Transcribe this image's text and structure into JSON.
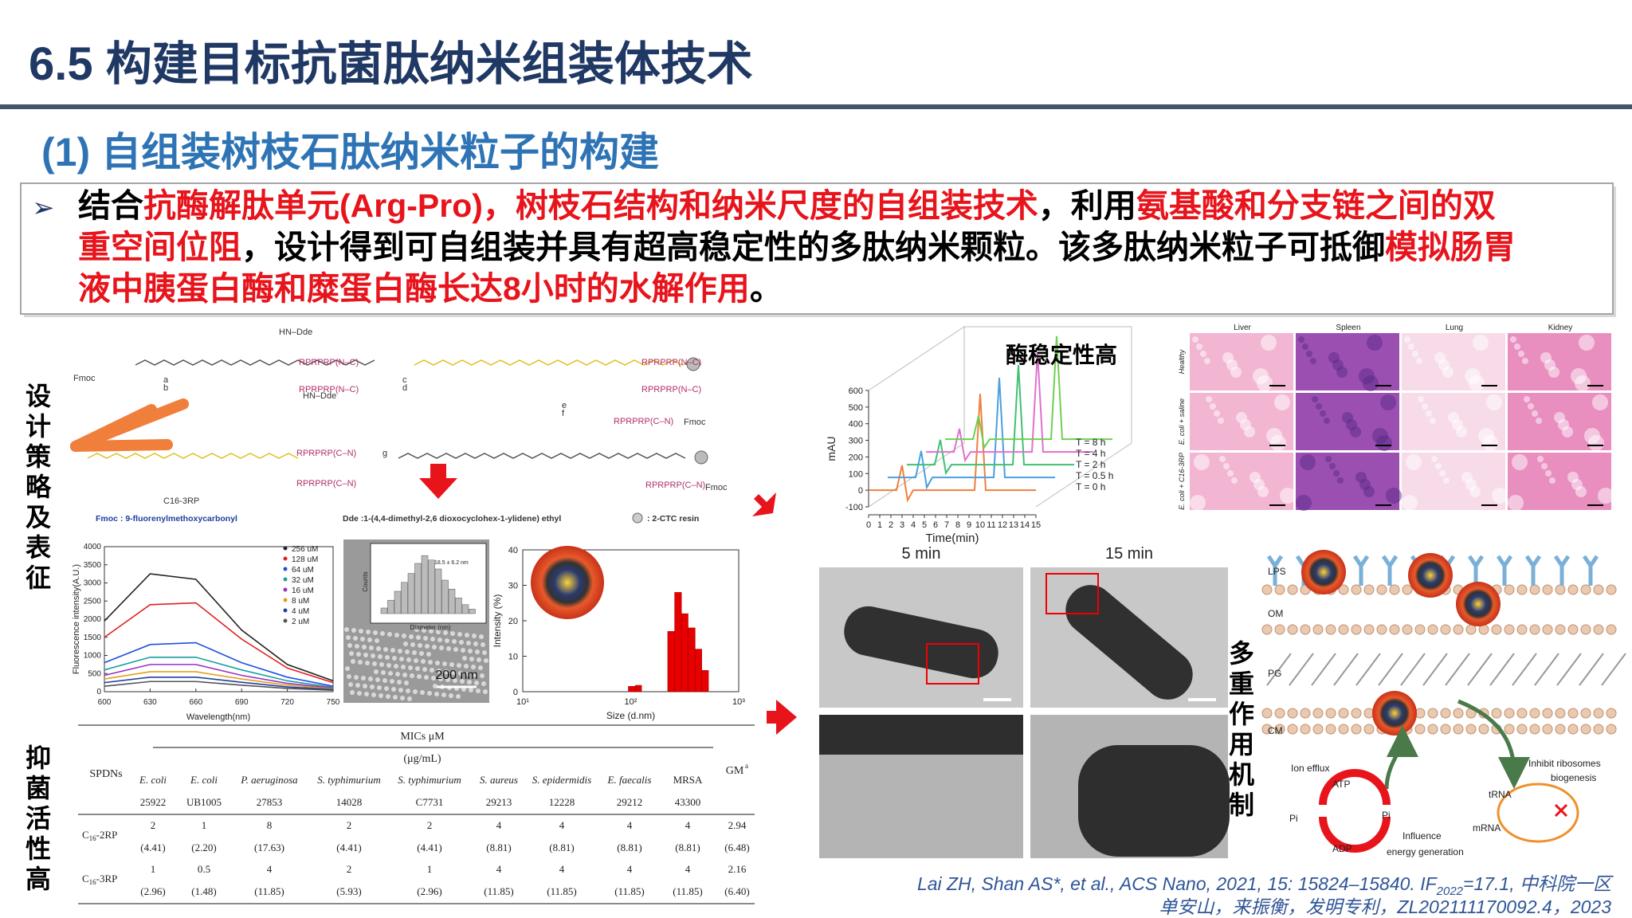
{
  "header": {
    "title": "6.5 构建目标抗菌肽纳米组装体技术",
    "subtitle": "(1) 自组装树枝石肽纳米粒子的构建"
  },
  "bullet": {
    "marker": "➢",
    "lines": [
      [
        {
          "text": "结合",
          "color": "#000000"
        },
        {
          "text": "抗酶解肽单元(Arg-Pro)，树枝石结构和纳米尺度的自组装技术",
          "color": "#e8141c"
        },
        {
          "text": "，利用",
          "color": "#000000"
        },
        {
          "text": "氨基酸和分支链之间的双",
          "color": "#e8141c"
        }
      ],
      [
        {
          "text": "重空间位阻",
          "color": "#e8141c"
        },
        {
          "text": "，设计得到可自组装并具有超高稳定性的多肽纳米颗粒。该多肽纳米粒子可抵御",
          "color": "#000000"
        },
        {
          "text": "模拟肠胃",
          "color": "#e8141c"
        }
      ],
      [
        {
          "text": "液中胰蛋白酶和糜蛋白酶长达8小时的水解作用",
          "color": "#e8141c"
        },
        {
          "text": "。",
          "color": "#000000"
        }
      ]
    ]
  },
  "side_labels": [
    "设计策略及表征",
    "抑菌活性高",
    "多重作用机制"
  ],
  "scheme": {
    "labels": [
      "Fmoc",
      "RPRPRP(N–C)",
      "RPRPRP(N–C)",
      "HN–Dde",
      "HN–Dde",
      "RPRPRP(N–C)",
      "RPRPRP(N–C)",
      "RPRPRP(C–N)",
      "RPRPRP(C–N)",
      "RPRPRP(C–N)",
      "RPRPRP(C–N)",
      "Fmoc",
      "Fmoc",
      "C16-3RP",
      "a",
      "b",
      "c",
      "d",
      "e",
      "f",
      "g"
    ],
    "legend": [
      "Fmoc : 9-fluorenylmethoxycarbonyl",
      "Dde :1-(4,4-dimethyl-2,6 dioxocyclohex-1-ylidene) ethyl",
      ": 2-CTC resin"
    ]
  },
  "fluorescence_chart": {
    "type": "line",
    "x_label": "Wavelength(nm)",
    "y_label": "Fluorescence intensity(A.U.)",
    "x": [
      600,
      630,
      660,
      690,
      720,
      750
    ],
    "xlim": [
      600,
      750
    ],
    "xticks": [
      600,
      630,
      660,
      690,
      720,
      750
    ],
    "ylim": [
      0,
      4000
    ],
    "yticks": [
      0,
      500,
      1000,
      1500,
      2000,
      2500,
      3000,
      3500,
      4000
    ],
    "series": [
      {
        "name": "256 uM",
        "color": "#222222",
        "values": [
          1950,
          3250,
          3100,
          1700,
          750,
          300
        ]
      },
      {
        "name": "128 uM",
        "color": "#e02020",
        "values": [
          1500,
          2400,
          2450,
          1450,
          650,
          250
        ]
      },
      {
        "name": "64 uM",
        "color": "#1f4fe0",
        "values": [
          800,
          1300,
          1350,
          800,
          400,
          150
        ]
      },
      {
        "name": "32 uM",
        "color": "#19a0a0",
        "values": [
          600,
          950,
          950,
          600,
          300,
          120
        ]
      },
      {
        "name": "16 uM",
        "color": "#9b30c0",
        "values": [
          450,
          750,
          750,
          450,
          230,
          100
        ]
      },
      {
        "name": "8 uM",
        "color": "#e0a020",
        "values": [
          350,
          550,
          550,
          350,
          180,
          80
        ]
      },
      {
        "name": "4 uM",
        "color": "#2040a0",
        "values": [
          250,
          400,
          400,
          260,
          130,
          60
        ]
      },
      {
        "name": "2 uM",
        "color": "#555555",
        "values": [
          150,
          280,
          280,
          180,
          90,
          40
        ]
      }
    ]
  },
  "tem_inset": {
    "x_label": "Diameter (nm)",
    "y_label": "Counts",
    "note": "18.5 ± 6.2 nm",
    "scale": "200 nm"
  },
  "dls_chart": {
    "type": "histogram",
    "x_label": "Size (d.nm)",
    "y_label": "Intensity (%)",
    "log_x": true,
    "color": "#e60000",
    "bins": [
      95,
      110,
      126,
      145,
      167,
      192,
      220,
      255,
      295,
      340,
      395,
      455,
      525
    ],
    "values": [
      1.5,
      1.8,
      0,
      0,
      0,
      0,
      17,
      28,
      22,
      18,
      12,
      6
    ],
    "xlim": [
      10,
      1000
    ],
    "xticks": [
      {
        "value": 10,
        "label": "10¹"
      },
      {
        "value": 100,
        "label": "10²"
      },
      {
        "value": 1000,
        "label": "10³"
      }
    ],
    "ylim": [
      0,
      40
    ],
    "yticks": [
      0,
      10,
      20,
      30,
      40
    ]
  },
  "stability_chart": {
    "type": "line",
    "title": "酶稳定性高",
    "x_label": "Time(min)",
    "y_label": "mAU",
    "x": [
      0,
      2.5,
      3,
      3.5,
      4,
      9.5,
      10,
      10.5,
      15
    ],
    "xlim": [
      0,
      15
    ],
    "xticks": [
      0,
      1,
      2,
      3,
      4,
      5,
      6,
      7,
      8,
      9,
      10,
      11,
      12,
      13,
      14,
      15
    ],
    "ylim": [
      -100,
      600
    ],
    "yticks": [
      -100,
      0,
      100,
      200,
      300,
      400,
      500,
      600
    ],
    "series": [
      {
        "name": "T = 0 h",
        "color": "#f07f3c",
        "values": [
          0,
          0,
          150,
          -60,
          0,
          0,
          580,
          0,
          0
        ]
      },
      {
        "name": "T = 0.5 h",
        "color": "#4aa0e0",
        "values": [
          0,
          0,
          160,
          -60,
          0,
          0,
          600,
          0,
          0
        ]
      },
      {
        "name": "T = 2 h",
        "color": "#40c070",
        "values": [
          0,
          0,
          150,
          -50,
          0,
          0,
          600,
          0,
          0
        ]
      },
      {
        "name": "T = 4 h",
        "color": "#e070d0",
        "values": [
          0,
          0,
          140,
          -50,
          0,
          0,
          600,
          0,
          0
        ]
      },
      {
        "name": "T = 8 h",
        "color": "#70d050",
        "values": [
          0,
          0,
          140,
          -50,
          0,
          0,
          620,
          0,
          0
        ]
      }
    ]
  },
  "histology": {
    "columns": [
      "Liver",
      "Spleen",
      "Lung",
      "Kidney"
    ],
    "rows": [
      "Healthy",
      "E. coli + saline",
      "E. coli + C16-3RP"
    ]
  },
  "tem": {
    "times": [
      "5 min",
      "15 min"
    ]
  },
  "mechanism": {
    "labels": [
      "LPS",
      "OM",
      "PG",
      "CM",
      "Ion efflux",
      "ATP",
      "ADP",
      "Pi",
      "Pi",
      "Influence",
      "energy generation",
      "Inhibit ribosomes",
      "biogenesis",
      "tRNA",
      "mRNA"
    ]
  },
  "table": {
    "row_header": "SPDNs",
    "group_header": "MICs μM",
    "unit": "(μg/mL)",
    "gm": "GM",
    "gm_sup": "a",
    "columns": [
      [
        "E. coli",
        "25922"
      ],
      [
        "E. coli",
        "UB1005"
      ],
      [
        "P. aeruginosa",
        "27853"
      ],
      [
        "S. typhimurium",
        "14028"
      ],
      [
        "S. typhimurium",
        "C7731"
      ],
      [
        "S. aureus",
        "29213"
      ],
      [
        "S. epidermidis",
        "12228"
      ],
      [
        "E. faecalis",
        "29212"
      ],
      [
        "MRSA",
        "43300"
      ]
    ],
    "rows": [
      {
        "name": "C",
        "name_sub": "16",
        "name_end": "-2RP",
        "values": [
          "2",
          "1",
          "8",
          "2",
          "2",
          "4",
          "4",
          "4",
          "4",
          "2.94"
        ],
        "values_ug": [
          "(4.41)",
          "(2.20)",
          "(17.63)",
          "(4.41)",
          "(4.41)",
          "(8.81)",
          "(8.81)",
          "(8.81)",
          "(8.81)",
          "(6.48)"
        ]
      },
      {
        "name": "C",
        "name_sub": "16",
        "name_end": "-3RP",
        "values": [
          "1",
          "0.5",
          "4",
          "2",
          "1",
          "4",
          "4",
          "4",
          "4",
          "2.16"
        ],
        "values_ug": [
          "(2.96)",
          "(1.48)",
          "(11.85)",
          "(5.93)",
          "(2.96)",
          "(11.85)",
          "(11.85)",
          "(11.85)",
          "(11.85)",
          "(6.40)"
        ]
      }
    ]
  },
  "citation": {
    "line1": "Lai ZH, Shan AS*, et al., ACS Nano, 2021, 15: 15824–15840. IF",
    "sub": "2022",
    "line1_end": "=17.1, 中科院一区",
    "line2": "单安山，来振衡，发明专利，ZL202111170092.4，2023"
  }
}
